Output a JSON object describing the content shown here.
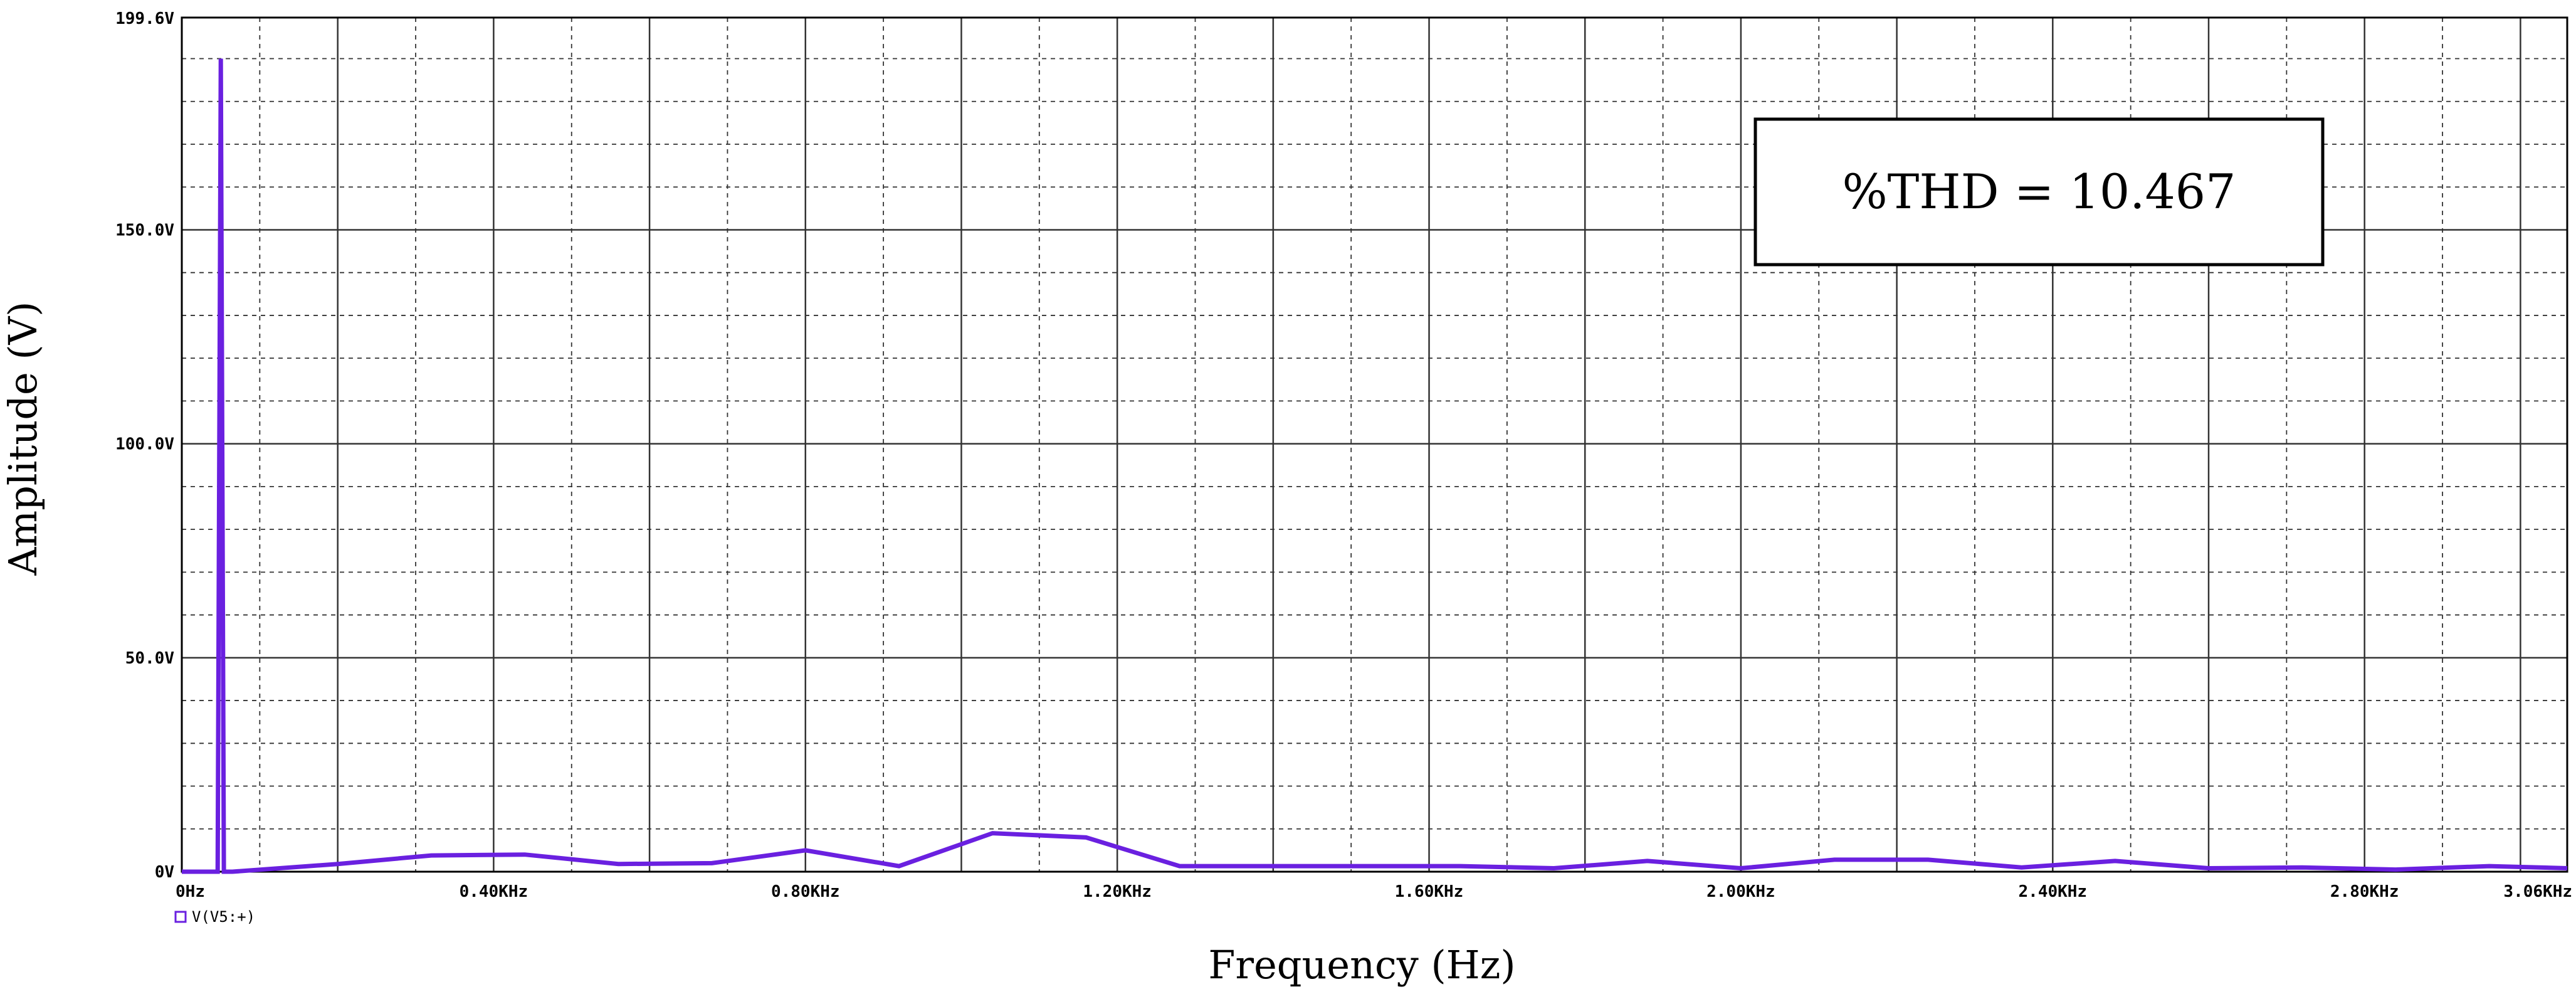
{
  "chart_data": {
    "type": "line",
    "title": "",
    "xlabel": "Frequency (Hz)",
    "ylabel": "Amplitude (V)",
    "xlim": [
      0,
      3060
    ],
    "ylim": [
      0,
      199.6
    ],
    "x_ticks": [
      {
        "value": 0,
        "label": "0Hz"
      },
      {
        "value": 400,
        "label": "0.40KHz"
      },
      {
        "value": 800,
        "label": "0.80KHz"
      },
      {
        "value": 1200,
        "label": "1.20KHz"
      },
      {
        "value": 1600,
        "label": "1.60KHz"
      },
      {
        "value": 2000,
        "label": "2.00KHz"
      },
      {
        "value": 2400,
        "label": "2.40KHz"
      },
      {
        "value": 2800,
        "label": "2.80KHz"
      },
      {
        "value": 3060,
        "label": "3.06KHz"
      }
    ],
    "y_ticks": [
      {
        "value": 0,
        "label": "0V"
      },
      {
        "value": 50,
        "label": "50.0V"
      },
      {
        "value": 100,
        "label": "100.0V"
      },
      {
        "value": 150,
        "label": "150.0V"
      },
      {
        "value": 199.6,
        "label": "199.6V"
      }
    ],
    "grid": true,
    "legend": {
      "label": "V(V5:+)",
      "position": "bottom-left"
    },
    "annotation": "%THD = 10.467",
    "colors": {
      "series": "#6a20e0",
      "grid": "#333333",
      "legend_marker": "#6a20e0"
    },
    "series": [
      {
        "name": "V(V5:+)",
        "x": [
          0,
          35,
          46,
          50,
          54,
          56,
          65,
          200,
          320,
          440,
          560,
          680,
          800,
          920,
          1040,
          1160,
          1280,
          1400,
          1520,
          1640,
          1760,
          1880,
          2000,
          2120,
          2240,
          2360,
          2480,
          2600,
          2720,
          2840,
          2960,
          3060
        ],
        "y": [
          0,
          0,
          0,
          190,
          0,
          0,
          0,
          1.8,
          3.8,
          4.0,
          1.8,
          2.0,
          5.0,
          1.3,
          9.0,
          8.0,
          1.3,
          1.3,
          1.3,
          1.3,
          0.8,
          2.5,
          0.8,
          2.8,
          2.8,
          1.0,
          2.5,
          0.8,
          1.0,
          0.5,
          1.3,
          0.8
        ]
      }
    ]
  }
}
